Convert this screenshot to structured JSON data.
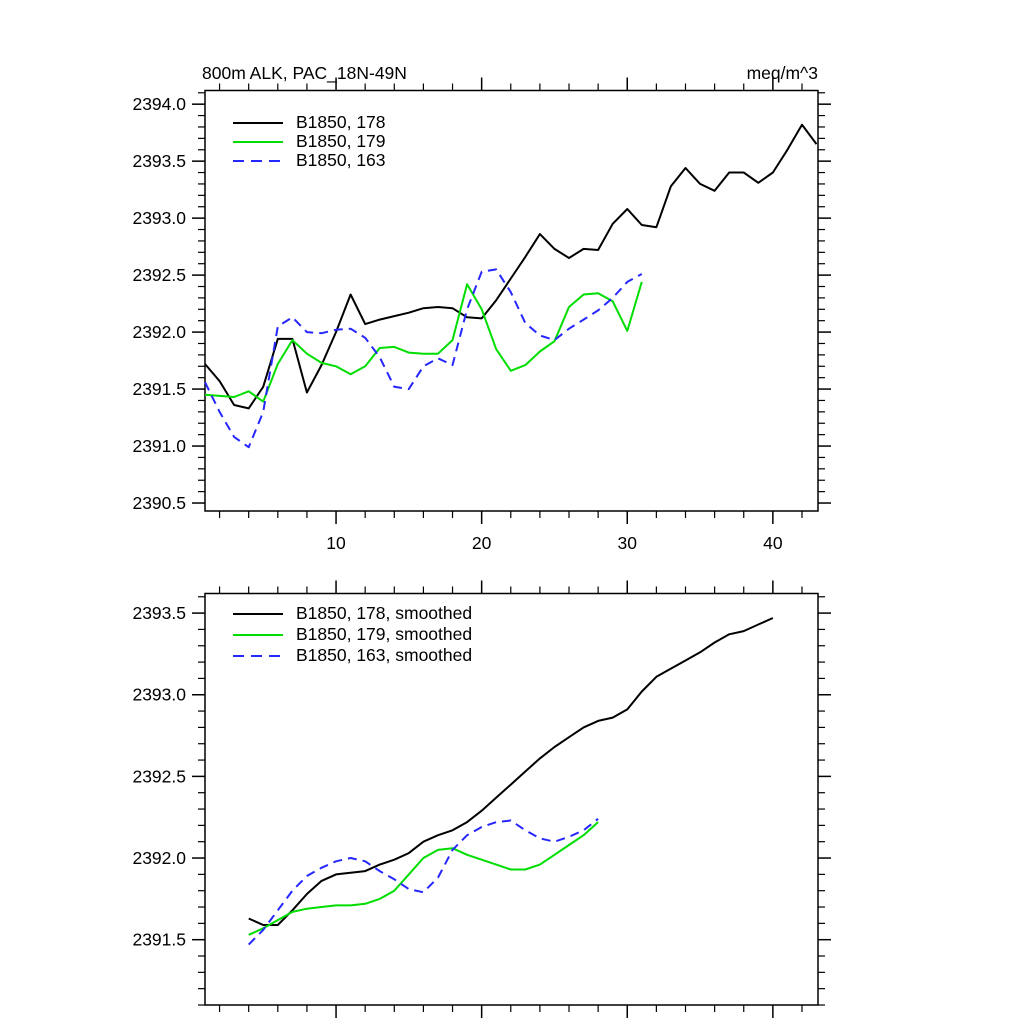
{
  "figure": {
    "background": "#ffffff",
    "axis_color": "#000000"
  },
  "chart_data": [
    {
      "type": "line",
      "title": "800m ALK, PAC_18N-49N",
      "units": "meq/m^3",
      "xlabel": "",
      "ylabel": "",
      "xlim": [
        1,
        43.1
      ],
      "ylim": [
        2390.43,
        2394.12
      ],
      "x_major_ticks": [
        10,
        20,
        30,
        40
      ],
      "x_minor_step": 2,
      "y_major_ticks": [
        2390.5,
        2391.0,
        2391.5,
        2392.0,
        2392.5,
        2393.0,
        2393.5,
        2394.0
      ],
      "y_minor_step": 0.1,
      "show_x_labels": true,
      "grid": false,
      "legend_position": "top-left-inside",
      "series": [
        {
          "name": "B1850, 178",
          "color": "#000000",
          "dashed": false,
          "x_start": 1,
          "values": [
            2391.72,
            2391.57,
            2391.36,
            2391.33,
            2391.52,
            2391.94,
            2391.94,
            2391.47,
            2391.71,
            2392.0,
            2392.33,
            2392.07,
            2392.11,
            2392.14,
            2392.17,
            2392.21,
            2392.22,
            2392.21,
            2392.13,
            2392.12,
            2392.28,
            2392.47,
            2392.66,
            2392.86,
            2392.73,
            2392.65,
            2392.73,
            2392.72,
            2392.95,
            2393.08,
            2392.94,
            2392.92,
            2393.28,
            2393.44,
            2393.3,
            2393.24,
            2393.4,
            2393.4,
            2393.31,
            2393.4,
            2393.6,
            2393.82,
            2393.65
          ]
        },
        {
          "name": "B1850, 179",
          "color": "#00dd00",
          "dashed": false,
          "x_start": 1,
          "values": [
            2391.45,
            2391.44,
            2391.43,
            2391.48,
            2391.39,
            2391.72,
            2391.93,
            2391.81,
            2391.73,
            2391.7,
            2391.63,
            2391.7,
            2391.86,
            2391.87,
            2391.82,
            2391.81,
            2391.81,
            2391.93,
            2392.42,
            2392.2,
            2391.85,
            2391.66,
            2391.71,
            2391.83,
            2391.92,
            2392.22,
            2392.33,
            2392.34,
            2392.27,
            2392.01,
            2392.44
          ]
        },
        {
          "name": "B1850, 163",
          "color": "#2626ff",
          "dashed": true,
          "x_start": 1,
          "values": [
            2391.56,
            2391.3,
            2391.08,
            2390.99,
            2391.3,
            2392.05,
            2392.13,
            2392.0,
            2391.99,
            2392.02,
            2392.03,
            2391.95,
            2391.78,
            2391.52,
            2391.5,
            2391.7,
            2391.77,
            2391.71,
            2392.2,
            2392.53,
            2392.55,
            2392.35,
            2392.08,
            2391.97,
            2391.93,
            2392.03,
            2392.11,
            2392.19,
            2392.3,
            2392.44,
            2392.51
          ]
        }
      ]
    },
    {
      "type": "line",
      "title": "",
      "units": "",
      "xlabel": "",
      "ylabel": "",
      "xlim": [
        1,
        43.1
      ],
      "ylim": [
        2391.1,
        2393.62
      ],
      "x_major_ticks": [
        10,
        20,
        30,
        40
      ],
      "x_minor_step": 2,
      "y_major_ticks": [
        2391.5,
        2392.0,
        2392.5,
        2393.0,
        2393.5
      ],
      "y_minor_step": 0.1,
      "show_x_labels": false,
      "grid": false,
      "legend_position": "top-left-inside",
      "series": [
        {
          "name": "B1850, 178, smoothed",
          "color": "#000000",
          "dashed": false,
          "x_start": 4,
          "values": [
            2391.63,
            2391.59,
            2391.59,
            2391.68,
            2391.78,
            2391.86,
            2391.9,
            2391.91,
            2391.92,
            2391.96,
            2391.99,
            2392.03,
            2392.1,
            2392.14,
            2392.17,
            2392.22,
            2392.29,
            2392.37,
            2392.45,
            2392.53,
            2392.61,
            2392.68,
            2392.74,
            2392.8,
            2392.84,
            2392.86,
            2392.91,
            2393.02,
            2393.11,
            2393.16,
            2393.21,
            2393.26,
            2393.32,
            2393.37,
            2393.39,
            2393.43,
            2393.47
          ]
        },
        {
          "name": "B1850, 179, smoothed",
          "color": "#00dd00",
          "dashed": false,
          "x_start": 4,
          "values": [
            2391.53,
            2391.57,
            2391.62,
            2391.67,
            2391.69,
            2391.7,
            2391.71,
            2391.71,
            2391.72,
            2391.75,
            2391.8,
            2391.9,
            2392.0,
            2392.05,
            2392.06,
            2392.02,
            2391.99,
            2391.96,
            2391.93,
            2391.93,
            2391.96,
            2392.02,
            2392.08,
            2392.14,
            2392.22
          ]
        },
        {
          "name": "B1850, 163, smoothed",
          "color": "#2626ff",
          "dashed": true,
          "x_start": 4,
          "values": [
            2391.47,
            2391.56,
            2391.68,
            2391.8,
            2391.89,
            2391.94,
            2391.98,
            2392.0,
            2391.98,
            2391.92,
            2391.87,
            2391.81,
            2391.79,
            2391.88,
            2392.05,
            2392.14,
            2392.19,
            2392.22,
            2392.23,
            2392.17,
            2392.12,
            2392.1,
            2392.13,
            2392.17,
            2392.24
          ]
        }
      ]
    }
  ]
}
